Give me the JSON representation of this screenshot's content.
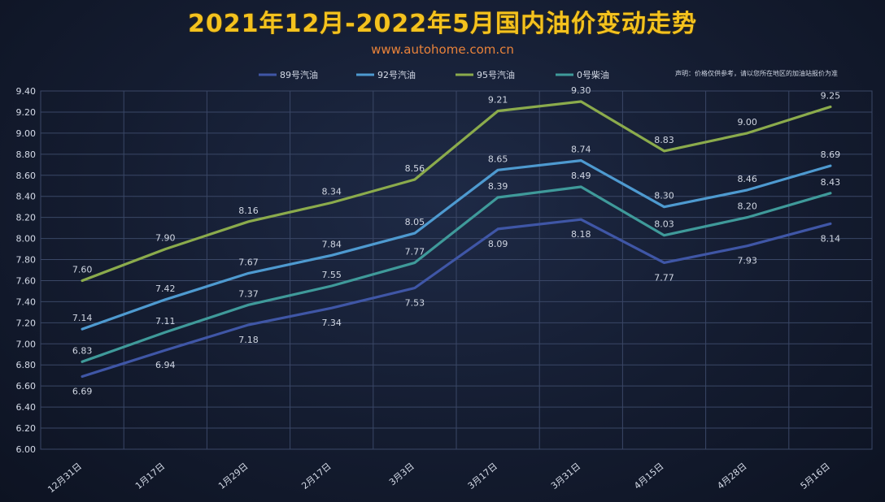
{
  "title": "2021年12月-2022年5月国内油价变动走势",
  "subtitle": "www.autohome.com.cn",
  "note": "声明：价格仅供参考，请以您所在地区的加油站报价为准",
  "chart_data": {
    "type": "line",
    "categories": [
      "12月31日",
      "1月17日",
      "1月29日",
      "2月17日",
      "3月3日",
      "3月17日",
      "3月31日",
      "4月15日",
      "4月28日",
      "5月16日"
    ],
    "ylim": [
      6.0,
      9.4
    ],
    "yticks": [
      "6.00",
      "6.20",
      "6.40",
      "6.60",
      "6.80",
      "7.00",
      "7.20",
      "7.40",
      "7.60",
      "7.80",
      "8.00",
      "8.20",
      "8.40",
      "8.60",
      "8.80",
      "9.00",
      "9.20",
      "9.40"
    ],
    "grid": true,
    "legend": "top",
    "series": [
      {
        "name": "89号汽油",
        "color": "#3f56a6",
        "values": [
          6.69,
          6.94,
          7.18,
          7.34,
          7.53,
          8.09,
          8.18,
          7.77,
          7.93,
          8.14
        ],
        "labels": [
          "6.69",
          "6.94",
          "7.18",
          "7.34",
          "7.53",
          "8.09",
          "8.18",
          "7.77",
          "7.93",
          "8.14"
        ]
      },
      {
        "name": "92号汽油",
        "color": "#4e9ad0",
        "values": [
          7.14,
          7.42,
          7.67,
          7.84,
          8.05,
          8.65,
          8.74,
          8.3,
          8.46,
          8.69
        ],
        "labels": [
          "7.14",
          "7.42",
          "7.67",
          "7.84",
          "8.05",
          "8.65",
          "8.74",
          "8.30",
          "8.46",
          "8.69"
        ]
      },
      {
        "name": "95号汽油",
        "color": "#8bab4c",
        "values": [
          7.6,
          7.9,
          8.16,
          8.34,
          8.56,
          9.21,
          9.3,
          8.83,
          9.0,
          9.25
        ],
        "labels": [
          "7.60",
          "7.90",
          "8.16",
          "8.34",
          "8.56",
          "9.21",
          "9.30",
          "8.83",
          "9.00",
          "9.25"
        ]
      },
      {
        "name": "0号柴油",
        "color": "#3f9a9a",
        "values": [
          6.83,
          7.11,
          7.37,
          7.55,
          7.77,
          8.39,
          8.49,
          8.03,
          8.2,
          8.43
        ],
        "labels": [
          "6.83",
          "7.11",
          "7.37",
          "7.55",
          "7.77",
          "8.39",
          "8.49",
          "8.03",
          "8.20",
          "8.43"
        ]
      }
    ]
  }
}
